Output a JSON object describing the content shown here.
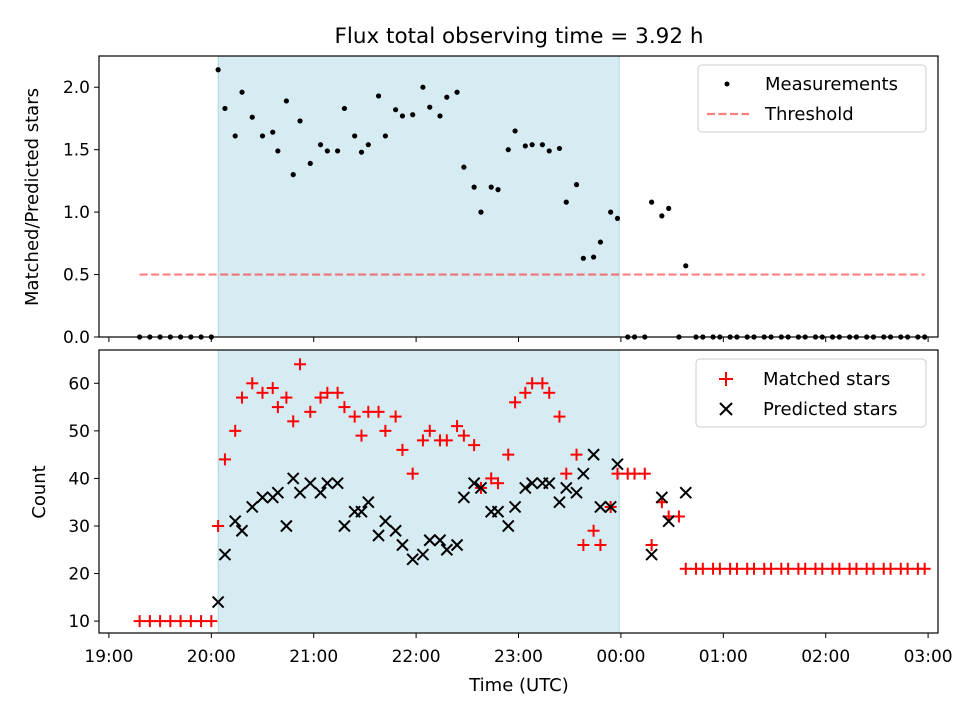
{
  "title": "Flux total observing time = 3.92 h",
  "colors": {
    "shade": "#add8e6",
    "threshold": "#ff0000",
    "measurement": "#000000",
    "matched": "#ff0000",
    "predicted": "#000000"
  },
  "chart_data": [
    {
      "type": "scatter",
      "ylabel": "Matched/Predicted stars",
      "xlim": [
        "19:00",
        "03:00"
      ],
      "ylim": [
        0,
        2.25
      ],
      "yticks": [
        "0.0",
        "0.5",
        "1.0",
        "1.5",
        "2.0"
      ],
      "legend": {
        "position": "top-right",
        "entries": [
          "Measurements",
          "Threshold"
        ]
      },
      "shaded_span": [
        "20:04",
        "23:59"
      ],
      "series": [
        {
          "name": "Measurements",
          "marker": "dot",
          "points": [
            [
              "19:18",
              0
            ],
            [
              "19:24",
              0
            ],
            [
              "19:30",
              0
            ],
            [
              "19:36",
              0
            ],
            [
              "19:42",
              0
            ],
            [
              "19:48",
              0
            ],
            [
              "19:54",
              0
            ],
            [
              "20:00",
              0
            ],
            [
              "20:04",
              2.14
            ],
            [
              "20:08",
              1.83
            ],
            [
              "20:14",
              1.61
            ],
            [
              "20:18",
              1.96
            ],
            [
              "20:24",
              1.76
            ],
            [
              "20:30",
              1.61
            ],
            [
              "20:36",
              1.64
            ],
            [
              "20:39",
              1.49
            ],
            [
              "20:44",
              1.89
            ],
            [
              "20:48",
              1.3
            ],
            [
              "20:52",
              1.73
            ],
            [
              "20:58",
              1.39
            ],
            [
              "21:04",
              1.54
            ],
            [
              "21:08",
              1.49
            ],
            [
              "21:14",
              1.49
            ],
            [
              "21:18",
              1.83
            ],
            [
              "21:24",
              1.61
            ],
            [
              "21:28",
              1.48
            ],
            [
              "21:32",
              1.54
            ],
            [
              "21:38",
              1.93
            ],
            [
              "21:42",
              1.61
            ],
            [
              "21:48",
              1.82
            ],
            [
              "21:52",
              1.77
            ],
            [
              "21:58",
              1.78
            ],
            [
              "22:04",
              2.0
            ],
            [
              "22:08",
              1.84
            ],
            [
              "22:14",
              1.77
            ],
            [
              "22:18",
              1.92
            ],
            [
              "22:24",
              1.96
            ],
            [
              "22:28",
              1.36
            ],
            [
              "22:34",
              1.2
            ],
            [
              "22:38",
              1.0
            ],
            [
              "22:44",
              1.2
            ],
            [
              "22:48",
              1.18
            ],
            [
              "22:54",
              1.5
            ],
            [
              "22:58",
              1.65
            ],
            [
              "23:04",
              1.53
            ],
            [
              "23:08",
              1.54
            ],
            [
              "23:14",
              1.54
            ],
            [
              "23:18",
              1.49
            ],
            [
              "23:24",
              1.51
            ],
            [
              "23:28",
              1.08
            ],
            [
              "23:34",
              1.22
            ],
            [
              "23:38",
              0.63
            ],
            [
              "23:44",
              0.64
            ],
            [
              "23:48",
              0.76
            ],
            [
              "23:54",
              1.0
            ],
            [
              "23:58",
              0.95
            ],
            [
              "00:04",
              0
            ],
            [
              "00:08",
              0
            ],
            [
              "00:14",
              0
            ],
            [
              "00:18",
              1.08
            ],
            [
              "00:24",
              0.97
            ],
            [
              "00:28",
              1.03
            ],
            [
              "00:34",
              0
            ],
            [
              "00:38",
              0.57
            ],
            [
              "00:44",
              0
            ],
            [
              "00:48",
              0
            ],
            [
              "00:54",
              0
            ],
            [
              "00:58",
              0
            ],
            [
              "01:04",
              0
            ],
            [
              "01:08",
              0
            ],
            [
              "01:14",
              0
            ],
            [
              "01:18",
              0
            ],
            [
              "01:24",
              0
            ],
            [
              "01:28",
              0
            ],
            [
              "01:34",
              0
            ],
            [
              "01:38",
              0
            ],
            [
              "01:44",
              0
            ],
            [
              "01:48",
              0
            ],
            [
              "01:54",
              0
            ],
            [
              "01:58",
              0
            ],
            [
              "02:04",
              0
            ],
            [
              "02:08",
              0
            ],
            [
              "02:14",
              0
            ],
            [
              "02:18",
              0
            ],
            [
              "02:24",
              0
            ],
            [
              "02:28",
              0
            ],
            [
              "02:34",
              0
            ],
            [
              "02:38",
              0
            ],
            [
              "02:44",
              0
            ],
            [
              "02:48",
              0
            ],
            [
              "02:54",
              0
            ],
            [
              "02:58",
              0
            ]
          ]
        },
        {
          "name": "Threshold",
          "style": "dashed",
          "points": [
            [
              "19:18",
              0.5
            ],
            [
              "02:58",
              0.5
            ]
          ]
        }
      ]
    },
    {
      "type": "scatter",
      "xlabel": "Time (UTC)",
      "ylabel": "Count",
      "xlim": [
        "19:00",
        "03:00"
      ],
      "ylim": [
        7.5,
        67
      ],
      "yticks": [
        "10",
        "20",
        "30",
        "40",
        "50",
        "60"
      ],
      "xticks": [
        "19:00",
        "20:00",
        "21:00",
        "22:00",
        "23:00",
        "00:00",
        "01:00",
        "02:00",
        "03:00"
      ],
      "legend": {
        "position": "top-right",
        "entries": [
          "Matched stars",
          "Predicted stars"
        ]
      },
      "shaded_span": [
        "20:04",
        "23:59"
      ],
      "series": [
        {
          "name": "Matched stars",
          "marker": "plus",
          "points": [
            [
              "19:18",
              10
            ],
            [
              "19:24",
              10
            ],
            [
              "19:30",
              10
            ],
            [
              "19:36",
              10
            ],
            [
              "19:42",
              10
            ],
            [
              "19:48",
              10
            ],
            [
              "19:54",
              10
            ],
            [
              "20:00",
              10
            ],
            [
              "20:04",
              30
            ],
            [
              "20:08",
              44
            ],
            [
              "20:14",
              50
            ],
            [
              "20:18",
              57
            ],
            [
              "20:24",
              60
            ],
            [
              "20:30",
              58
            ],
            [
              "20:36",
              59
            ],
            [
              "20:39",
              55
            ],
            [
              "20:44",
              57
            ],
            [
              "20:48",
              52
            ],
            [
              "20:52",
              64
            ],
            [
              "20:58",
              54
            ],
            [
              "21:04",
              57
            ],
            [
              "21:08",
              58
            ],
            [
              "21:14",
              58
            ],
            [
              "21:18",
              55
            ],
            [
              "21:24",
              53
            ],
            [
              "21:28",
              49
            ],
            [
              "21:32",
              54
            ],
            [
              "21:38",
              54
            ],
            [
              "21:42",
              50
            ],
            [
              "21:48",
              53
            ],
            [
              "21:52",
              46
            ],
            [
              "21:58",
              41
            ],
            [
              "22:04",
              48
            ],
            [
              "22:08",
              50
            ],
            [
              "22:14",
              48
            ],
            [
              "22:18",
              48
            ],
            [
              "22:24",
              51
            ],
            [
              "22:28",
              49
            ],
            [
              "22:34",
              47
            ],
            [
              "22:38",
              38
            ],
            [
              "22:44",
              40
            ],
            [
              "22:48",
              39
            ],
            [
              "22:54",
              45
            ],
            [
              "22:58",
              56
            ],
            [
              "23:04",
              58
            ],
            [
              "23:08",
              60
            ],
            [
              "23:14",
              60
            ],
            [
              "23:18",
              58
            ],
            [
              "23:24",
              53
            ],
            [
              "23:28",
              41
            ],
            [
              "23:34",
              45
            ],
            [
              "23:38",
              26
            ],
            [
              "23:44",
              29
            ],
            [
              "23:48",
              26
            ],
            [
              "23:54",
              34
            ],
            [
              "23:58",
              41
            ],
            [
              "00:04",
              41
            ],
            [
              "00:08",
              41
            ],
            [
              "00:14",
              41
            ],
            [
              "00:18",
              26
            ],
            [
              "00:24",
              35
            ],
            [
              "00:28",
              32
            ],
            [
              "00:34",
              32
            ],
            [
              "00:38",
              21
            ],
            [
              "00:44",
              21
            ],
            [
              "00:48",
              21
            ],
            [
              "00:54",
              21
            ],
            [
              "00:58",
              21
            ],
            [
              "01:04",
              21
            ],
            [
              "01:08",
              21
            ],
            [
              "01:14",
              21
            ],
            [
              "01:18",
              21
            ],
            [
              "01:24",
              21
            ],
            [
              "01:28",
              21
            ],
            [
              "01:34",
              21
            ],
            [
              "01:38",
              21
            ],
            [
              "01:44",
              21
            ],
            [
              "01:48",
              21
            ],
            [
              "01:54",
              21
            ],
            [
              "01:58",
              21
            ],
            [
              "02:04",
              21
            ],
            [
              "02:08",
              21
            ],
            [
              "02:14",
              21
            ],
            [
              "02:18",
              21
            ],
            [
              "02:24",
              21
            ],
            [
              "02:28",
              21
            ],
            [
              "02:34",
              21
            ],
            [
              "02:38",
              21
            ],
            [
              "02:44",
              21
            ],
            [
              "02:48",
              21
            ],
            [
              "02:54",
              21
            ],
            [
              "02:58",
              21
            ]
          ]
        },
        {
          "name": "Predicted stars",
          "marker": "x",
          "points": [
            [
              "20:04",
              14
            ],
            [
              "20:08",
              24
            ],
            [
              "20:14",
              31
            ],
            [
              "20:18",
              29
            ],
            [
              "20:24",
              34
            ],
            [
              "20:30",
              36
            ],
            [
              "20:36",
              36
            ],
            [
              "20:39",
              37
            ],
            [
              "20:44",
              30
            ],
            [
              "20:48",
              40
            ],
            [
              "20:52",
              37
            ],
            [
              "20:58",
              39
            ],
            [
              "21:04",
              37
            ],
            [
              "21:08",
              39
            ],
            [
              "21:14",
              39
            ],
            [
              "21:18",
              30
            ],
            [
              "21:24",
              33
            ],
            [
              "21:28",
              33
            ],
            [
              "21:32",
              35
            ],
            [
              "21:38",
              28
            ],
            [
              "21:42",
              31
            ],
            [
              "21:48",
              29
            ],
            [
              "21:52",
              26
            ],
            [
              "21:58",
              23
            ],
            [
              "22:04",
              24
            ],
            [
              "22:08",
              27
            ],
            [
              "22:14",
              27
            ],
            [
              "22:18",
              25
            ],
            [
              "22:24",
              26
            ],
            [
              "22:28",
              36
            ],
            [
              "22:34",
              39
            ],
            [
              "22:38",
              38
            ],
            [
              "22:44",
              33
            ],
            [
              "22:48",
              33
            ],
            [
              "22:54",
              30
            ],
            [
              "22:58",
              34
            ],
            [
              "23:04",
              38
            ],
            [
              "23:08",
              39
            ],
            [
              "23:14",
              39
            ],
            [
              "23:18",
              39
            ],
            [
              "23:24",
              35
            ],
            [
              "23:28",
              38
            ],
            [
              "23:34",
              37
            ],
            [
              "23:38",
              41
            ],
            [
              "23:44",
              45
            ],
            [
              "23:48",
              34
            ],
            [
              "23:54",
              34
            ],
            [
              "23:58",
              43
            ],
            [
              "00:18",
              24
            ],
            [
              "00:24",
              36
            ],
            [
              "00:28",
              31
            ],
            [
              "00:38",
              37
            ]
          ]
        }
      ]
    }
  ]
}
